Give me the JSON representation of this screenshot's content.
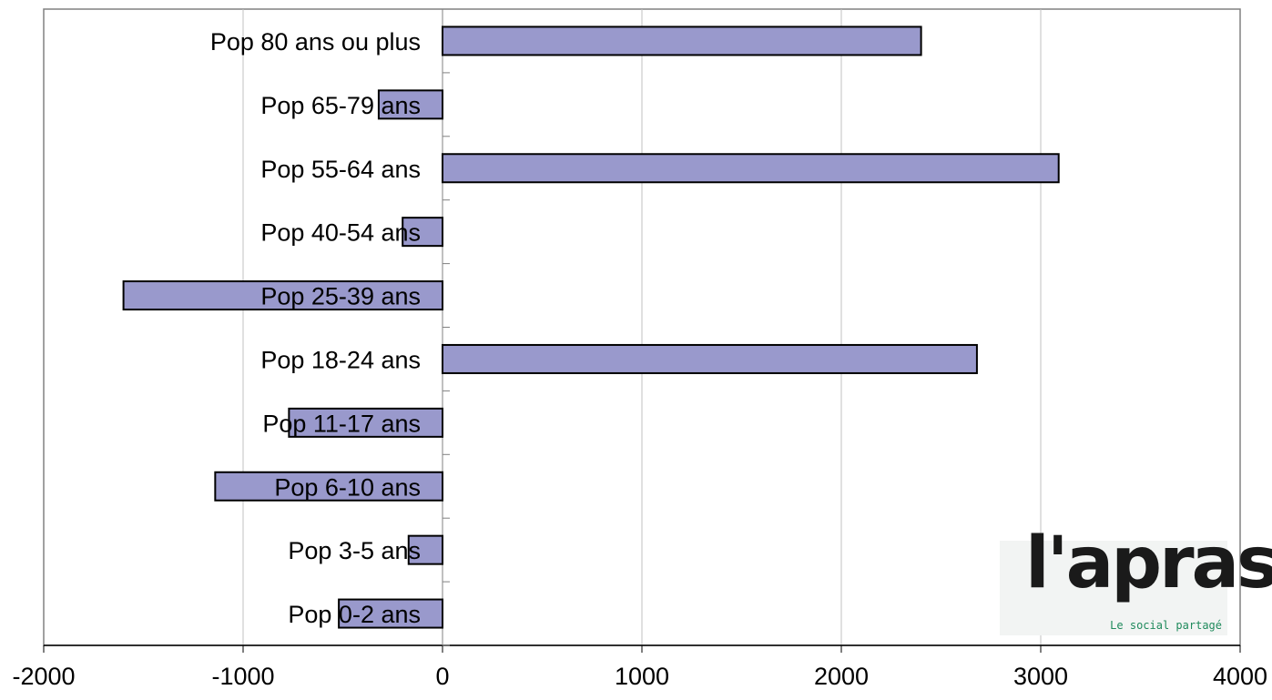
{
  "chart_data": {
    "type": "bar",
    "orientation": "horizontal",
    "categories": [
      "Pop 80 ans ou plus",
      "Pop 65-79 ans",
      "Pop 55-64 ans",
      "Pop 40-54 ans",
      "Pop 25-39 ans",
      "Pop 18-24 ans",
      "Pop 11-17 ans",
      "Pop 6-10 ans",
      "Pop 3-5 ans",
      "Pop 0-2 ans"
    ],
    "values": [
      2400,
      -320,
      3090,
      -200,
      -1600,
      2680,
      -770,
      -1140,
      -170,
      -520
    ],
    "xlim": [
      -2000,
      4000
    ],
    "xticks": [
      -2000,
      -1000,
      0,
      1000,
      2000,
      3000,
      4000
    ],
    "xtick_labels": [
      "-2000",
      "-1000",
      "0",
      "1000",
      "2000",
      "3000",
      "4000"
    ],
    "grid": "vertical",
    "legend": "none",
    "colors": {
      "bar_fill": "#9999cc",
      "bar_stroke": "#000000",
      "grid": "#c0c0c0",
      "frame": "#808080"
    }
  },
  "logo": {
    "mark": "l'apras",
    "tagline": "Le social partagé"
  }
}
